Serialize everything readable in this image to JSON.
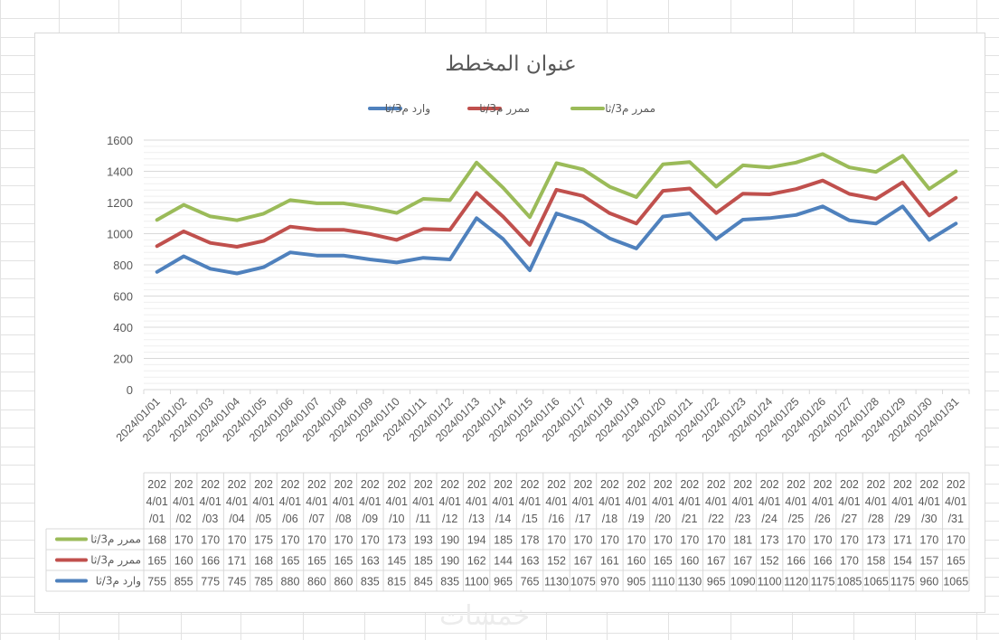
{
  "chart_data": {
    "type": "line",
    "title": "عنوان المخطط",
    "xlabel": "",
    "ylabel": "",
    "ylim": [
      0,
      1600
    ],
    "yticks": [
      0,
      200,
      400,
      600,
      800,
      1000,
      1200,
      1400,
      1600
    ],
    "stacked": true,
    "grid": true,
    "legend_position": "top",
    "categories": [
      "2024/01/01",
      "2024/01/02",
      "2024/01/03",
      "2024/01/04",
      "2024/01/05",
      "2024/01/06",
      "2024/01/07",
      "2024/01/08",
      "2024/01/09",
      "2024/01/10",
      "2024/01/11",
      "2024/01/12",
      "2024/01/13",
      "2024/01/14",
      "2024/01/15",
      "2024/01/16",
      "2024/01/17",
      "2024/01/18",
      "2024/01/19",
      "2024/01/20",
      "2024/01/21",
      "2024/01/22",
      "2024/01/23",
      "2024/01/24",
      "2024/01/25",
      "2024/01/26",
      "2024/01/27",
      "2024/01/28",
      "2024/01/29",
      "2024/01/30",
      "2024/01/31"
    ],
    "table_categories": [
      [
        "202",
        "4/01",
        "/01"
      ],
      [
        "202",
        "4/01",
        "/02"
      ],
      [
        "202",
        "4/01",
        "/03"
      ],
      [
        "202",
        "4/01",
        "/04"
      ],
      [
        "202",
        "4/01",
        "/05"
      ],
      [
        "202",
        "4/01",
        "/06"
      ],
      [
        "202",
        "4/01",
        "/07"
      ],
      [
        "202",
        "4/01",
        "/08"
      ],
      [
        "202",
        "4/01",
        "/09"
      ],
      [
        "202",
        "4/01",
        "/10"
      ],
      [
        "202",
        "4/01",
        "/11"
      ],
      [
        "202",
        "4/01",
        "/12"
      ],
      [
        "202",
        "4/01",
        "/13"
      ],
      [
        "202",
        "4/01",
        "/14"
      ],
      [
        "202",
        "4/01",
        "/15"
      ],
      [
        "202",
        "4/01",
        "/16"
      ],
      [
        "202",
        "4/01",
        "/17"
      ],
      [
        "202",
        "4/01",
        "/18"
      ],
      [
        "202",
        "4/01",
        "/19"
      ],
      [
        "202",
        "4/01",
        "/20"
      ],
      [
        "202",
        "4/01",
        "/21"
      ],
      [
        "202",
        "4/01",
        "/22"
      ],
      [
        "202",
        "4/01",
        "/23"
      ],
      [
        "202",
        "4/01",
        "/24"
      ],
      [
        "202",
        "4/01",
        "/25"
      ],
      [
        "202",
        "4/01",
        "/26"
      ],
      [
        "202",
        "4/01",
        "/27"
      ],
      [
        "202",
        "4/01",
        "/28"
      ],
      [
        "202",
        "4/01",
        "/29"
      ],
      [
        "202",
        "4/01",
        "/30"
      ],
      [
        "202",
        "4/01",
        "/31"
      ]
    ],
    "series": [
      {
        "name": "وارد م3/ثا",
        "color": "#4f81bd",
        "values": [
          755,
          855,
          775,
          745,
          785,
          880,
          860,
          860,
          835,
          815,
          845,
          835,
          1100,
          965,
          765,
          1130,
          1075,
          970,
          905,
          1110,
          1130,
          965,
          1090,
          1100,
          1120,
          1175,
          1085,
          1065,
          1175,
          960,
          1065
        ],
        "table_labels": [
          "755",
          "855",
          "775",
          "745",
          "785",
          "880",
          "860",
          "860",
          "835",
          "815",
          "845",
          "835",
          "1100",
          "965",
          "765",
          "1130",
          "1075",
          "970",
          "905",
          "1110",
          "1130",
          "965",
          "1090",
          "1100",
          "1120",
          "1175",
          "1085",
          "1065",
          "1175",
          "960",
          "1065"
        ]
      },
      {
        "name": "ممرر م3/ثا",
        "color": "#c0504d",
        "values": [
          165,
          160,
          166,
          171,
          168,
          165,
          165,
          165,
          163,
          145,
          185,
          190,
          162,
          144,
          163,
          152,
          167,
          161,
          160,
          165,
          160,
          167,
          167,
          152,
          166,
          166,
          170,
          158,
          154,
          157,
          165
        ],
        "table_labels": [
          "165",
          "160",
          "166",
          "171",
          "168",
          "165",
          "165",
          "165",
          "163",
          "145",
          "185",
          "190",
          "162",
          "144",
          "163",
          "152",
          "167",
          "161",
          "160",
          "165",
          "160",
          "167",
          "167",
          "152",
          "166",
          "166",
          "170",
          "158",
          "154",
          "157",
          "165"
        ]
      },
      {
        "name": "ممرر م3/ثا",
        "color": "#9bbb59",
        "values": [
          168,
          170,
          170,
          170,
          175,
          170,
          170,
          170,
          170,
          173,
          193,
          190,
          194,
          185,
          178,
          170,
          170,
          170,
          170,
          170,
          170,
          170,
          181,
          173,
          170,
          170,
          170,
          173,
          171,
          170,
          170
        ],
        "table_labels": [
          "168",
          "170",
          "170",
          "170",
          "175",
          "170",
          "170",
          "170",
          "170",
          "173",
          "193",
          "190",
          "194",
          "185",
          "178",
          "170",
          "170",
          "170",
          "170",
          "170",
          "170",
          "170",
          "181",
          "173",
          "170",
          "170",
          "170",
          "173",
          "171",
          "170",
          "170"
        ]
      }
    ]
  },
  "watermark": "خمسات"
}
